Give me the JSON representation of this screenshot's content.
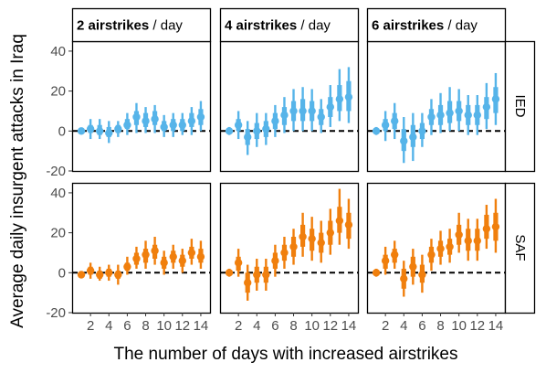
{
  "chart_data": {
    "type": "scatter",
    "xlabel": "The number of days with increased airstrikes",
    "ylabel": "Average daily insurgent attacks in Iraq",
    "x_ticks": [
      2,
      4,
      6,
      8,
      10,
      12,
      14
    ],
    "y_ticks": [
      -20,
      0,
      20,
      40
    ],
    "xlim": [
      0,
      15
    ],
    "ylim": [
      -20,
      45
    ],
    "reference_line": 0,
    "columns": [
      {
        "bold": "2 airstrikes",
        "rest": " / day"
      },
      {
        "bold": "4 airstrikes",
        "rest": " / day"
      },
      {
        "bold": "6 airstrikes",
        "rest": " / day"
      }
    ],
    "rows": [
      {
        "label": "IED",
        "color": "#56B4E9"
      },
      {
        "label": "SAF",
        "color": "#F07F0D"
      }
    ],
    "x": [
      1,
      2,
      3,
      4,
      5,
      6,
      7,
      8,
      9,
      10,
      11,
      12,
      13,
      14
    ],
    "panels": [
      {
        "row": "IED",
        "col": "2 airstrikes / day",
        "values": [
          0,
          1,
          0,
          -1,
          1,
          3,
          7,
          5,
          6,
          2,
          3,
          3,
          5,
          7
        ],
        "ci95": [
          [
            -1,
            1
          ],
          [
            -4,
            6
          ],
          [
            -4,
            6
          ],
          [
            -6,
            5
          ],
          [
            -3,
            5
          ],
          [
            -2,
            9
          ],
          [
            -1,
            14
          ],
          [
            -1,
            12
          ],
          [
            -1,
            13
          ],
          [
            -3,
            8
          ],
          [
            -3,
            9
          ],
          [
            -2,
            9
          ],
          [
            -2,
            12
          ],
          [
            0,
            15
          ]
        ],
        "ci50": [
          [
            -1,
            1
          ],
          [
            -1,
            3
          ],
          [
            -2,
            3
          ],
          [
            -3,
            2
          ],
          [
            -1,
            3
          ],
          [
            1,
            6
          ],
          [
            3,
            10
          ],
          [
            2,
            9
          ],
          [
            3,
            10
          ],
          [
            0,
            5
          ],
          [
            0,
            6
          ],
          [
            0,
            6
          ],
          [
            2,
            9
          ],
          [
            3,
            11
          ]
        ]
      },
      {
        "row": "IED",
        "col": "4 airstrikes / day",
        "values": [
          0,
          3,
          -3,
          0,
          1,
          5,
          8,
          10,
          10,
          10,
          7,
          12,
          16,
          17
        ],
        "ci95": [
          [
            -2,
            2
          ],
          [
            -4,
            10
          ],
          [
            -12,
            5
          ],
          [
            -8,
            9
          ],
          [
            -7,
            9
          ],
          [
            -3,
            13
          ],
          [
            -1,
            17
          ],
          [
            0,
            21
          ],
          [
            0,
            22
          ],
          [
            0,
            21
          ],
          [
            -1,
            16
          ],
          [
            2,
            23
          ],
          [
            5,
            31
          ],
          [
            4,
            32
          ]
        ],
        "ci50": [
          [
            -1,
            1
          ],
          [
            0,
            6
          ],
          [
            -7,
            1
          ],
          [
            -4,
            4
          ],
          [
            -3,
            5
          ],
          [
            1,
            9
          ],
          [
            3,
            12
          ],
          [
            5,
            15
          ],
          [
            5,
            16
          ],
          [
            5,
            15
          ],
          [
            3,
            11
          ],
          [
            7,
            17
          ],
          [
            10,
            23
          ],
          [
            10,
            25
          ]
        ]
      },
      {
        "row": "IED",
        "col": "6 airstrikes / day",
        "values": [
          0,
          3,
          5,
          -5,
          -3,
          0,
          7,
          8,
          9,
          10,
          8,
          8,
          12,
          16
        ],
        "ci95": [
          [
            -2,
            2
          ],
          [
            -5,
            10
          ],
          [
            -4,
            14
          ],
          [
            -16,
            7
          ],
          [
            -15,
            9
          ],
          [
            -8,
            9
          ],
          [
            -2,
            16
          ],
          [
            -1,
            19
          ],
          [
            0,
            22
          ],
          [
            0,
            21
          ],
          [
            -2,
            18
          ],
          [
            -2,
            18
          ],
          [
            1,
            24
          ],
          [
            3,
            29
          ]
        ],
        "ci50": [
          [
            -1,
            1
          ],
          [
            0,
            6
          ],
          [
            1,
            9
          ],
          [
            -10,
            1
          ],
          [
            -8,
            3
          ],
          [
            -4,
            4
          ],
          [
            3,
            11
          ],
          [
            3,
            13
          ],
          [
            4,
            15
          ],
          [
            5,
            15
          ],
          [
            3,
            13
          ],
          [
            3,
            13
          ],
          [
            6,
            17
          ],
          [
            9,
            22
          ]
        ]
      },
      {
        "row": "SAF",
        "col": "2 airstrikes / day",
        "values": [
          -1,
          1,
          -1,
          0,
          -1,
          3,
          7,
          9,
          11,
          5,
          8,
          6,
          10,
          8
        ],
        "ci95": [
          [
            -2,
            0
          ],
          [
            -3,
            5
          ],
          [
            -4,
            3
          ],
          [
            -4,
            4
          ],
          [
            -6,
            4
          ],
          [
            -1,
            8
          ],
          [
            2,
            13
          ],
          [
            2,
            16
          ],
          [
            4,
            18
          ],
          [
            -1,
            11
          ],
          [
            2,
            14
          ],
          [
            0,
            12
          ],
          [
            4,
            17
          ],
          [
            2,
            16
          ]
        ],
        "ci50": [
          [
            -1,
            0
          ],
          [
            -1,
            3
          ],
          [
            -3,
            1
          ],
          [
            -2,
            2
          ],
          [
            -3,
            1
          ],
          [
            1,
            5
          ],
          [
            4,
            10
          ],
          [
            5,
            12
          ],
          [
            7,
            14
          ],
          [
            2,
            8
          ],
          [
            5,
            11
          ],
          [
            3,
            9
          ],
          [
            7,
            13
          ],
          [
            5,
            12
          ]
        ]
      },
      {
        "row": "SAF",
        "col": "4 airstrikes / day",
        "values": [
          0,
          5,
          -5,
          -1,
          -1,
          6,
          10,
          13,
          18,
          17,
          15,
          20,
          26,
          24
        ],
        "ci95": [
          [
            -2,
            2
          ],
          [
            -2,
            12
          ],
          [
            -14,
            4
          ],
          [
            -9,
            7
          ],
          [
            -9,
            7
          ],
          [
            -2,
            14
          ],
          [
            2,
            18
          ],
          [
            4,
            22
          ],
          [
            8,
            30
          ],
          [
            6,
            28
          ],
          [
            5,
            26
          ],
          [
            9,
            32
          ],
          [
            14,
            42
          ],
          [
            12,
            37
          ]
        ],
        "ci50": [
          [
            -1,
            1
          ],
          [
            1,
            8
          ],
          [
            -10,
            0
          ],
          [
            -5,
            3
          ],
          [
            -5,
            3
          ],
          [
            2,
            10
          ],
          [
            6,
            14
          ],
          [
            8,
            18
          ],
          [
            13,
            24
          ],
          [
            11,
            22
          ],
          [
            10,
            20
          ],
          [
            14,
            26
          ],
          [
            20,
            33
          ],
          [
            17,
            30
          ]
        ]
      },
      {
        "row": "SAF",
        "col": "6 airstrikes / day",
        "values": [
          0,
          6,
          9,
          -3,
          3,
          -1,
          9,
          12,
          13,
          19,
          16,
          16,
          22,
          23
        ],
        "ci95": [
          [
            -2,
            2
          ],
          [
            -1,
            13
          ],
          [
            2,
            16
          ],
          [
            -12,
            6
          ],
          [
            -6,
            12
          ],
          [
            -10,
            9
          ],
          [
            1,
            17
          ],
          [
            4,
            21
          ],
          [
            5,
            22
          ],
          [
            10,
            30
          ],
          [
            6,
            27
          ],
          [
            6,
            27
          ],
          [
            12,
            34
          ],
          [
            10,
            37
          ]
        ],
        "ci50": [
          [
            -1,
            1
          ],
          [
            2,
            9
          ],
          [
            5,
            12
          ],
          [
            -8,
            2
          ],
          [
            -2,
            8
          ],
          [
            -5,
            4
          ],
          [
            5,
            13
          ],
          [
            8,
            16
          ],
          [
            9,
            17
          ],
          [
            14,
            24
          ],
          [
            11,
            22
          ],
          [
            11,
            22
          ],
          [
            17,
            29
          ],
          [
            16,
            30
          ]
        ]
      }
    ]
  }
}
